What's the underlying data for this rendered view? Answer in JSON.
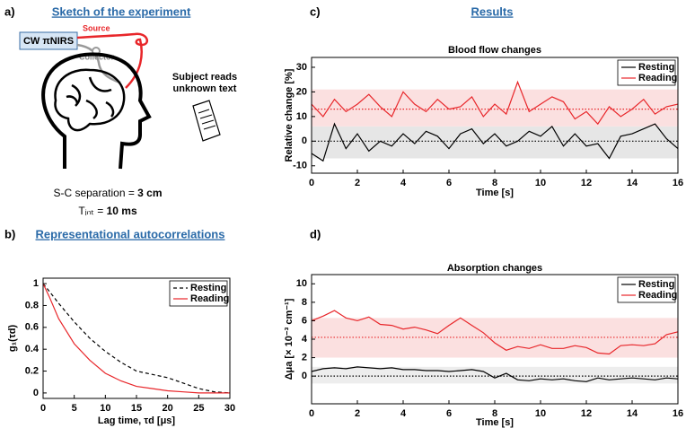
{
  "figure": {
    "panel_label": "a)",
    "heading": "Sketch of the experiment",
    "device": "CW πNIRS",
    "source": "Source",
    "collector": "Collector",
    "subject_note": [
      "Subject reads",
      "unknown text"
    ],
    "separation_text": "S-C separation = ",
    "separation_value": "3 cm",
    "integration_text": "Tᵢₙₜ = ",
    "integration_value": "10 ms"
  },
  "chart_data": [
    {
      "type": "line",
      "panel_label": "b)",
      "heading": "Representational autocorrelations",
      "x_label": "Lag time, τd [μs]",
      "y_label": "g₁(τd)",
      "x": [
        0,
        1,
        2.5,
        5,
        7.5,
        10,
        12.5,
        15,
        17.5,
        20,
        22.5,
        25,
        27.5,
        30
      ],
      "series": [
        {
          "name": "Resting",
          "color": "#000000",
          "line_style": "dashed",
          "values": [
            1,
            0.93,
            0.82,
            0.65,
            0.5,
            0.38,
            0.28,
            0.2,
            0.17,
            0.14,
            0.09,
            0.04,
            0.01,
            0.0
          ]
        },
        {
          "name": "Reading",
          "color": "#e8262a",
          "line_style": "solid",
          "values": [
            1,
            0.88,
            0.68,
            0.45,
            0.3,
            0.18,
            0.11,
            0.06,
            0.04,
            0.02,
            0.01,
            0.0,
            0.0,
            0.0
          ]
        }
      ],
      "xlim": [
        0,
        30
      ],
      "ylim": [
        -0.05,
        1.05
      ],
      "xticks": [
        0,
        5,
        10,
        15,
        20,
        25,
        30
      ],
      "yticks": [
        0,
        0.2,
        0.4,
        0.6,
        0.8,
        1
      ],
      "legend": "upper right"
    },
    {
      "type": "line",
      "panel_label": "c)",
      "heading": "Results",
      "title": "Blood flow changes",
      "x_label": "Time [s]",
      "y_label": "Relative change [%]",
      "x": [
        0,
        0.5,
        1,
        1.5,
        2,
        2.5,
        3,
        3.5,
        4,
        4.5,
        5,
        5.5,
        6,
        6.5,
        7,
        7.5,
        8,
        8.5,
        9,
        9.5,
        10,
        10.5,
        11,
        11.5,
        12,
        12.5,
        13,
        13.5,
        14,
        14.5,
        15,
        15.5,
        16
      ],
      "series": [
        {
          "name": "Resting",
          "color": "#000000",
          "line_style": "solid",
          "values": [
            -5,
            -8,
            7,
            -3,
            3,
            -4,
            0,
            -2,
            3,
            -1,
            4,
            2,
            -3,
            3,
            5,
            -1,
            3,
            -2,
            0,
            4,
            2,
            6,
            -2,
            3,
            -2,
            -1,
            -7,
            2,
            3,
            5,
            7,
            1,
            -3
          ]
        },
        {
          "name": "Reading",
          "color": "#e8262a",
          "line_style": "solid",
          "values": [
            15,
            10,
            17,
            12,
            15,
            19,
            14,
            10,
            20,
            15,
            12,
            17,
            13,
            14,
            18,
            10,
            15,
            11,
            24,
            12,
            15,
            18,
            16,
            9,
            12,
            7,
            14,
            10,
            13,
            17,
            11,
            14,
            15
          ]
        }
      ],
      "bands": [
        {
          "range": [
            -7,
            6
          ],
          "color": "#e6e6e6"
        },
        {
          "range": [
            6,
            21
          ],
          "color": "#fbe0e0"
        }
      ],
      "reference_lines": [
        {
          "value": 0,
          "color": "#000000"
        },
        {
          "value": 13,
          "color": "#e8262a"
        }
      ],
      "xlim": [
        0,
        16
      ],
      "ylim": [
        -13,
        34
      ],
      "xticks": [
        0,
        2,
        4,
        6,
        8,
        10,
        12,
        14,
        16
      ],
      "yticks": [
        -10,
        0,
        10,
        20,
        30
      ],
      "legend": "upper right"
    },
    {
      "type": "line",
      "panel_label": "d)",
      "title": "Absorption changes",
      "x_label": "Time [s]",
      "y_label": "Δμa [× 10⁻³ cm⁻¹]",
      "x": [
        0,
        0.5,
        1,
        1.5,
        2,
        2.5,
        3,
        3.5,
        4,
        4.5,
        5,
        5.5,
        6,
        6.5,
        7,
        7.5,
        8,
        8.5,
        9,
        9.5,
        10,
        10.5,
        11,
        11.5,
        12,
        12.5,
        13,
        13.5,
        14,
        14.5,
        15,
        15.5,
        16
      ],
      "series": [
        {
          "name": "Resting",
          "color": "#000000",
          "line_style": "solid",
          "values": [
            0.5,
            0.8,
            0.9,
            0.8,
            1.0,
            0.9,
            0.8,
            0.9,
            0.7,
            0.7,
            0.6,
            0.6,
            0.5,
            0.6,
            0.7,
            0.5,
            -0.2,
            0.3,
            -0.4,
            -0.5,
            -0.3,
            -0.4,
            -0.3,
            -0.5,
            -0.6,
            -0.2,
            -0.4,
            -0.3,
            -0.2,
            -0.3,
            -0.4,
            -0.2,
            -0.3
          ]
        },
        {
          "name": "Reading",
          "color": "#e8262a",
          "line_style": "solid",
          "values": [
            6.0,
            6.5,
            7.1,
            6.3,
            6.0,
            6.4,
            5.6,
            5.5,
            5.1,
            5.3,
            5.0,
            4.6,
            5.5,
            6.3,
            5.5,
            4.7,
            3.6,
            2.8,
            3.2,
            3.0,
            3.4,
            3.0,
            3.0,
            3.3,
            3.1,
            2.5,
            2.4,
            3.3,
            3.4,
            3.3,
            3.5,
            4.5,
            4.8
          ]
        }
      ],
      "bands": [
        {
          "range": [
            -0.8,
            1.0
          ],
          "color": "#ededed"
        },
        {
          "range": [
            2.0,
            6.3
          ],
          "color": "#fbe0e0"
        }
      ],
      "reference_lines": [
        {
          "value": 0,
          "color": "#000000"
        },
        {
          "value": 4.2,
          "color": "#e8262a"
        }
      ],
      "xlim": [
        0,
        16
      ],
      "ylim": [
        -3,
        11
      ],
      "xticks": [
        0,
        2,
        4,
        6,
        8,
        10,
        12,
        14,
        16
      ],
      "yticks": [
        0,
        2,
        4,
        6,
        8,
        10
      ],
      "legend": "upper right"
    }
  ]
}
